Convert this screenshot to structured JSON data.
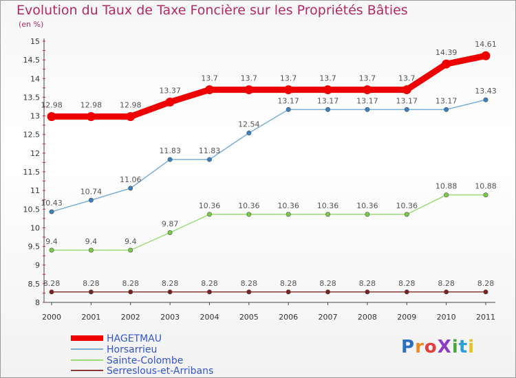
{
  "chart_data": {
    "type": "line",
    "title": "Evolution du Taux de Taxe Foncière sur les Propriétés Bâties",
    "subtitle": "(en %)",
    "xlabel": "",
    "ylabel": "(en %)",
    "ylim": [
      8,
      15
    ],
    "yticks": [
      "8",
      "8.5",
      "9",
      "9.5",
      "10",
      "10.5",
      "11",
      "11.5",
      "12",
      "12.5",
      "13",
      "13.5",
      "14",
      "14.5",
      "15"
    ],
    "categories": [
      "2000",
      "2001",
      "2002",
      "2003",
      "2004",
      "2005",
      "2006",
      "2007",
      "2008",
      "2009",
      "2010",
      "2011"
    ],
    "legend_position": "bottom-left",
    "series": [
      {
        "name": "HAGETMAU",
        "color": "#ee0000",
        "label_color": "#3355cc",
        "values": [
          12.98,
          12.98,
          12.98,
          13.37,
          13.7,
          13.7,
          13.7,
          13.7,
          13.7,
          13.7,
          14.39,
          14.61
        ],
        "labels": [
          "12.98",
          "12.98",
          "12.98",
          "13.37",
          "13.7",
          "13.7",
          "13.7",
          "13.7",
          "13.7",
          "13.7",
          "14.39",
          "14.61"
        ]
      },
      {
        "name": "Horsarrieu",
        "color": "#7ab0d8",
        "marker": "#3a7fc0",
        "label_color": "#3355cc",
        "values": [
          10.43,
          10.74,
          11.06,
          11.83,
          11.83,
          12.54,
          13.17,
          13.17,
          13.17,
          13.17,
          13.17,
          13.43
        ],
        "labels": [
          "10.43",
          "10.74",
          "11.06",
          "11.83",
          "11.83",
          "12.54",
          "13.17",
          "13.17",
          "13.17",
          "13.17",
          "13.17",
          "13.43"
        ]
      },
      {
        "name": "Sainte-Colombe",
        "color": "#99dd77",
        "marker": "#77cc44",
        "label_color": "#3355cc",
        "values": [
          9.4,
          9.4,
          9.4,
          9.87,
          10.36,
          10.36,
          10.36,
          10.36,
          10.36,
          10.36,
          10.88,
          10.88
        ],
        "labels": [
          "9.4",
          "9.4",
          "9.4",
          "9.87",
          "10.36",
          "10.36",
          "10.36",
          "10.36",
          "10.36",
          "10.36",
          "10.88",
          "10.88"
        ]
      },
      {
        "name": "Serreslous-et-Arribans",
        "color": "#8a3a3a",
        "marker": "#7a2020",
        "label_color": "#3355cc",
        "values": [
          8.28,
          8.28,
          8.28,
          8.28,
          8.28,
          8.28,
          8.28,
          8.28,
          8.28,
          8.28,
          8.28,
          8.28
        ],
        "labels": [
          "8.28",
          "8.28",
          "8.28",
          "8.28",
          "8.28",
          "8.28",
          "8.28",
          "8.28",
          "8.28",
          "8.28",
          "8.28",
          "8.28"
        ]
      }
    ]
  },
  "logo": {
    "text": "ProXiti",
    "letters": [
      "P",
      "r",
      "o",
      "X",
      "i",
      "t",
      "i"
    ],
    "colors": [
      "#2b6fc4",
      "#f08a1e",
      "#e63c3c",
      "#8c3cc4",
      "#4aa83a",
      "#2b9fd8",
      "#e6c21e"
    ]
  }
}
